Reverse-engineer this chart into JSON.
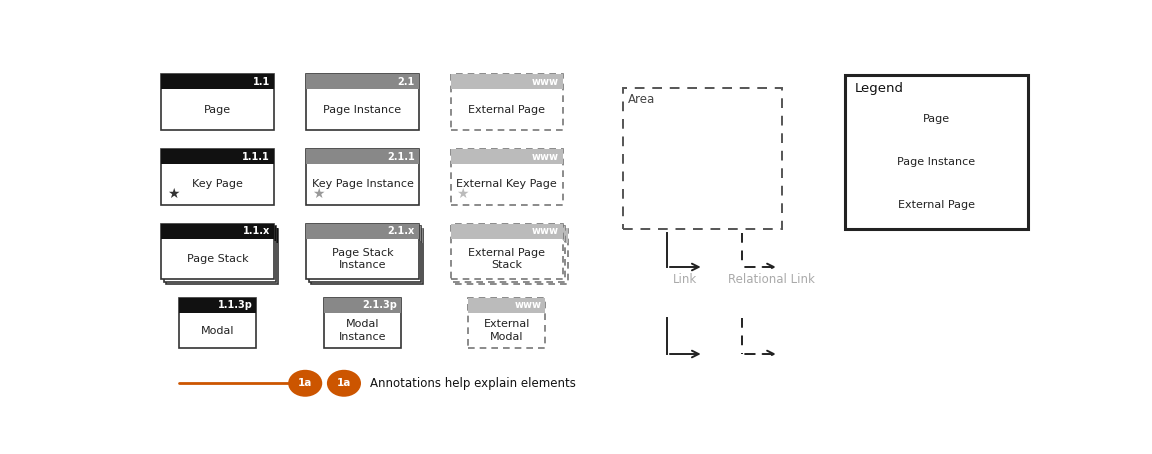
{
  "bg_color": "#ffffff",
  "black_header": "#111111",
  "gray_header": "#888888",
  "light_gray_header": "#bbbbbb",
  "orange": "#cc5500",
  "link_gray": "#aaaaaa",
  "arrow_color": "#222222",
  "items": [
    {
      "label": "1.1",
      "text": "Page",
      "col": 0,
      "row": 0,
      "style": "black",
      "has_star": false,
      "stack": false,
      "modal": false
    },
    {
      "label": "2.1",
      "text": "Page Instance",
      "col": 1,
      "row": 0,
      "style": "gray",
      "has_star": false,
      "stack": false,
      "modal": false
    },
    {
      "label": "www",
      "text": "External Page",
      "col": 2,
      "row": 0,
      "style": "lightgray_dashed",
      "has_star": false,
      "stack": false,
      "modal": false
    },
    {
      "label": "1.1.1",
      "text": "Key Page",
      "col": 0,
      "row": 1,
      "style": "black",
      "has_star": true,
      "star_style": "black",
      "stack": false,
      "modal": false
    },
    {
      "label": "2.1.1",
      "text": "Key Page Instance",
      "col": 1,
      "row": 1,
      "style": "gray",
      "has_star": true,
      "star_style": "gray",
      "stack": false,
      "modal": false
    },
    {
      "label": "www",
      "text": "External Key Page",
      "col": 2,
      "row": 1,
      "style": "lightgray_dashed",
      "has_star": true,
      "star_style": "lightgray",
      "stack": false,
      "modal": false
    },
    {
      "label": "1.1.x",
      "text": "Page Stack",
      "col": 0,
      "row": 2,
      "style": "black",
      "has_star": false,
      "stack": true,
      "modal": false
    },
    {
      "label": "2.1.x",
      "text": "Page Stack\nInstance",
      "col": 1,
      "row": 2,
      "style": "gray",
      "has_star": false,
      "stack": true,
      "modal": false
    },
    {
      "label": "www",
      "text": "External Page\nStack",
      "col": 2,
      "row": 2,
      "style": "lightgray_dashed",
      "has_star": false,
      "stack": true,
      "modal": false
    },
    {
      "label": "1.1.3p",
      "text": "Modal",
      "col": 0,
      "row": 3,
      "style": "black",
      "has_star": false,
      "stack": false,
      "modal": true
    },
    {
      "label": "2.1.3p",
      "text": "Modal\nInstance",
      "col": 1,
      "row": 3,
      "style": "gray",
      "has_star": false,
      "stack": false,
      "modal": true
    },
    {
      "label": "www",
      "text": "External\nModal",
      "col": 2,
      "row": 3,
      "style": "lightgray_dashed",
      "has_star": false,
      "stack": false,
      "modal": true
    }
  ]
}
